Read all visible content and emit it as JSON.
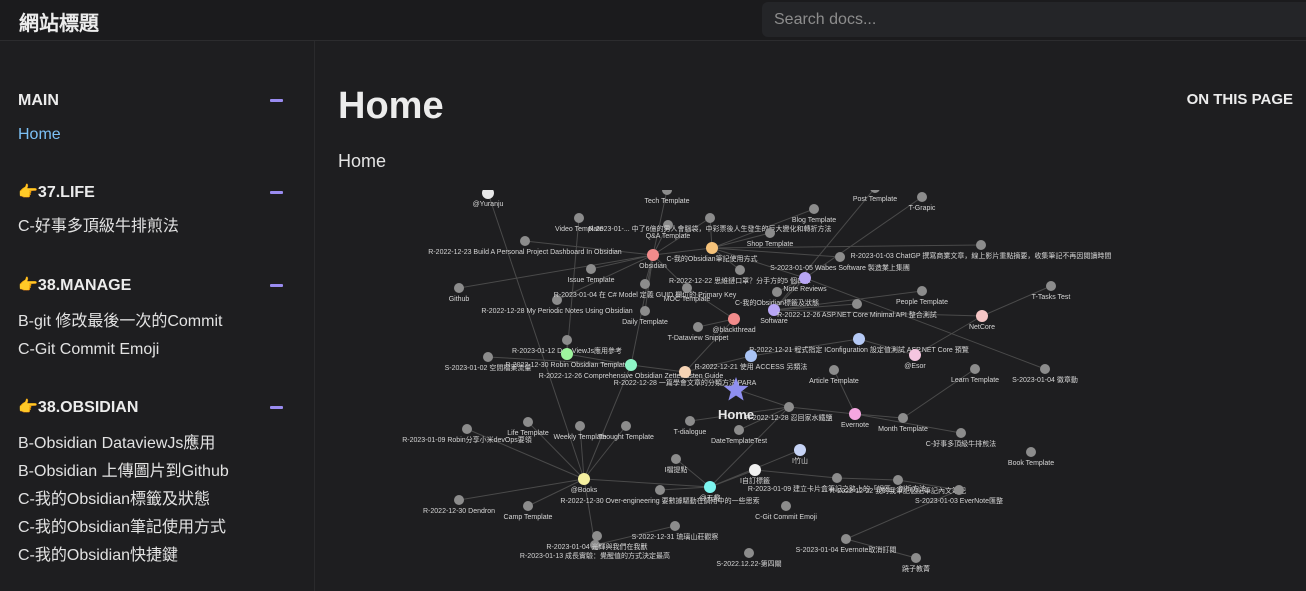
{
  "site": {
    "title": "網站標題"
  },
  "search": {
    "placeholder": "Search docs..."
  },
  "sidebar": {
    "sections": [
      {
        "title": "MAIN",
        "items": [
          "Home"
        ]
      },
      {
        "title": "👉37.LIFE",
        "items": [
          "C-好事多頂級牛排煎法"
        ]
      },
      {
        "title": "👉38.MANAGE",
        "items": [
          "B-git 修改最後一次的Commit",
          "C-Git Commit Emoji"
        ]
      },
      {
        "title": "👉38.OBSIDIAN",
        "items": [
          "B-Obsidian DataviewJs應用",
          "B-Obsidian 上傳圖片到Github",
          "C-我的Obsidian標籤及狀態",
          "C-我的Obsidian筆記使用方式",
          "C-我的Obsidian快捷鍵"
        ]
      }
    ],
    "active_item": "Home"
  },
  "main": {
    "title": "Home",
    "subtitle": "Home",
    "on_this_page": "ON THIS PAGE"
  },
  "graph": {
    "center_label": "Home",
    "colors": {
      "node": "#8c8c8c",
      "edge": "#4a4a4a",
      "center": "#8f8ff0",
      "label": "#d6d6d6"
    },
    "nodes": [
      {
        "label": "@Yuranju",
        "c": "#e8e8e8"
      },
      {
        "label": "Tech Template",
        "c": ""
      },
      {
        "label": "Post Template",
        "c": ""
      },
      {
        "label": "T-Grapic",
        "c": ""
      },
      {
        "label": "Video Template",
        "c": ""
      },
      {
        "label": "Q&A Template",
        "c": ""
      },
      {
        "label": "R-2023-01-... 中了6億的男人會腦袋，中彩票後人生發生的巨大變化和轉折方法",
        "c": ""
      },
      {
        "label": "Blog Template",
        "c": ""
      },
      {
        "label": "Shop Template",
        "c": ""
      },
      {
        "label": "R-2022-12-23 Build A Personal Project Dashboard In Obsidian",
        "c": ""
      },
      {
        "label": "Obsidian",
        "c": "#f28b8b"
      },
      {
        "label": "C-我的Obsidian筆記使用方式",
        "c": "#f5c27a"
      },
      {
        "label": "S-2023-01-05 Wabes Software 製造業上集團",
        "c": ""
      },
      {
        "label": "R-2023-01-03 ChatGP 撰寫商業文章，線上影片重點摘要，收集筆記不再因閱讀時間",
        "c": ""
      },
      {
        "label": "Issue Template",
        "c": ""
      },
      {
        "label": "R-2022-12-22 思維鏈口罩？分手方的5 個口罩",
        "c": ""
      },
      {
        "label": "Note Reviews",
        "c": "#b8a6f5"
      },
      {
        "label": "Github",
        "c": ""
      },
      {
        "label": "C-我的Obsidian標籤及狀態",
        "c": ""
      },
      {
        "label": "People Template",
        "c": ""
      },
      {
        "label": "T-Tasks Test",
        "c": ""
      },
      {
        "label": "R-2022-12-28 My Periodic Notes Using Obsidian",
        "c": ""
      },
      {
        "label": "R-2023-01-04 在 C# Model 定義 GUID 欄位的 Primary Key",
        "c": ""
      },
      {
        "label": "MOC Template",
        "c": ""
      },
      {
        "label": "Software",
        "c": "#b8a6f5"
      },
      {
        "label": "R-2022-12-26 ASP.NET Core Minimal API 整合測試",
        "c": ""
      },
      {
        "label": "NetCore",
        "c": "#f5c6c6"
      },
      {
        "label": "Daily Template",
        "c": ""
      },
      {
        "label": "@blackthread",
        "c": "#f28b8b"
      },
      {
        "label": "T-Dataview Snippet",
        "c": ""
      },
      {
        "label": "R-2023-01-12 DataViewJs應用參考",
        "c": ""
      },
      {
        "label": "R-2022-12-21 程式指定 IConfiguration 設定值測試 ASP.NET Core 預覽",
        "c": "#b5c9f5"
      },
      {
        "label": "R-2022-12-21 使用 ACCESS 另類法",
        "c": "#aac4f5"
      },
      {
        "label": "@Esor",
        "c": "#f5c6e0"
      },
      {
        "label": "S-2023-01-02 空間檔案流量",
        "c": ""
      },
      {
        "label": "R-2022-12-30 Robin Obsidian Template",
        "c": "#9ef59e"
      },
      {
        "label": "R-2022-12-26 Comprehensive Obsidian Zettelkasten Guide",
        "c": "#8ef5c6"
      },
      {
        "label": "R-2022-12-28 一篇學會文章的分類方法 PARA",
        "c": "#f5d3b4"
      },
      {
        "label": "Article Template",
        "c": ""
      },
      {
        "label": "Learn Template",
        "c": ""
      },
      {
        "label": "S-2023-01-04 徽章動",
        "c": ""
      },
      {
        "label": "R-2022-12-28 忍回家水鐵鹽",
        "c": ""
      },
      {
        "label": "Evernote",
        "c": "#f5a6e0"
      },
      {
        "label": "Month Template",
        "c": ""
      },
      {
        "label": "Life Template",
        "c": ""
      },
      {
        "label": "Weekly Template",
        "c": ""
      },
      {
        "label": "Thought Template",
        "c": ""
      },
      {
        "label": "T-dialogue",
        "c": ""
      },
      {
        "label": "DateTemplateTest",
        "c": ""
      },
      {
        "label": "R-2023-01-09 Robin分享小米devOps要領",
        "c": ""
      },
      {
        "label": "C-好事多頂級牛排煎法",
        "c": ""
      },
      {
        "label": "Book Template",
        "c": ""
      },
      {
        "label": "I竹山",
        "c": "#c6d3f5"
      },
      {
        "label": "I檔提點",
        "c": ""
      },
      {
        "label": "I自訂標籤",
        "c": "#f0f0f0"
      },
      {
        "label": "R-2023-01-09 建立卡片盒筆記之路上的「誤區」剖析方法",
        "c": ""
      },
      {
        "label": "R-2022-12-22 我的我筆記個記筆記內文筆記",
        "c": ""
      },
      {
        "label": "@Books",
        "c": "#f5f0a0"
      },
      {
        "label": "R-2022-12-30 Over-engineering 要數據驅動在調用中的一些思索",
        "c": ""
      },
      {
        "label": "@五趣",
        "c": "#7df5f0"
      },
      {
        "label": "S-2023-01-03 EverNote匯整",
        "c": ""
      },
      {
        "label": "R-2022-12-30 Dendron",
        "c": ""
      },
      {
        "label": "Camp Template",
        "c": ""
      },
      {
        "label": "C-Git Commit Emoji",
        "c": ""
      },
      {
        "label": "S-2022-12-31 琉璃山莊觀察",
        "c": ""
      },
      {
        "label": "S-2023-01-04 Evernote取消訂閱",
        "c": ""
      },
      {
        "label": "R-2023-01-13 成長實驗：覺醒值的方式決定最高",
        "c": ""
      },
      {
        "label": "S-2022.12.22-第四關",
        "c": ""
      },
      {
        "label": "蹺子教菁",
        "c": ""
      },
      {
        "label": "R-2023-01-04 光輝與我們在我獸",
        "c": ""
      }
    ]
  }
}
